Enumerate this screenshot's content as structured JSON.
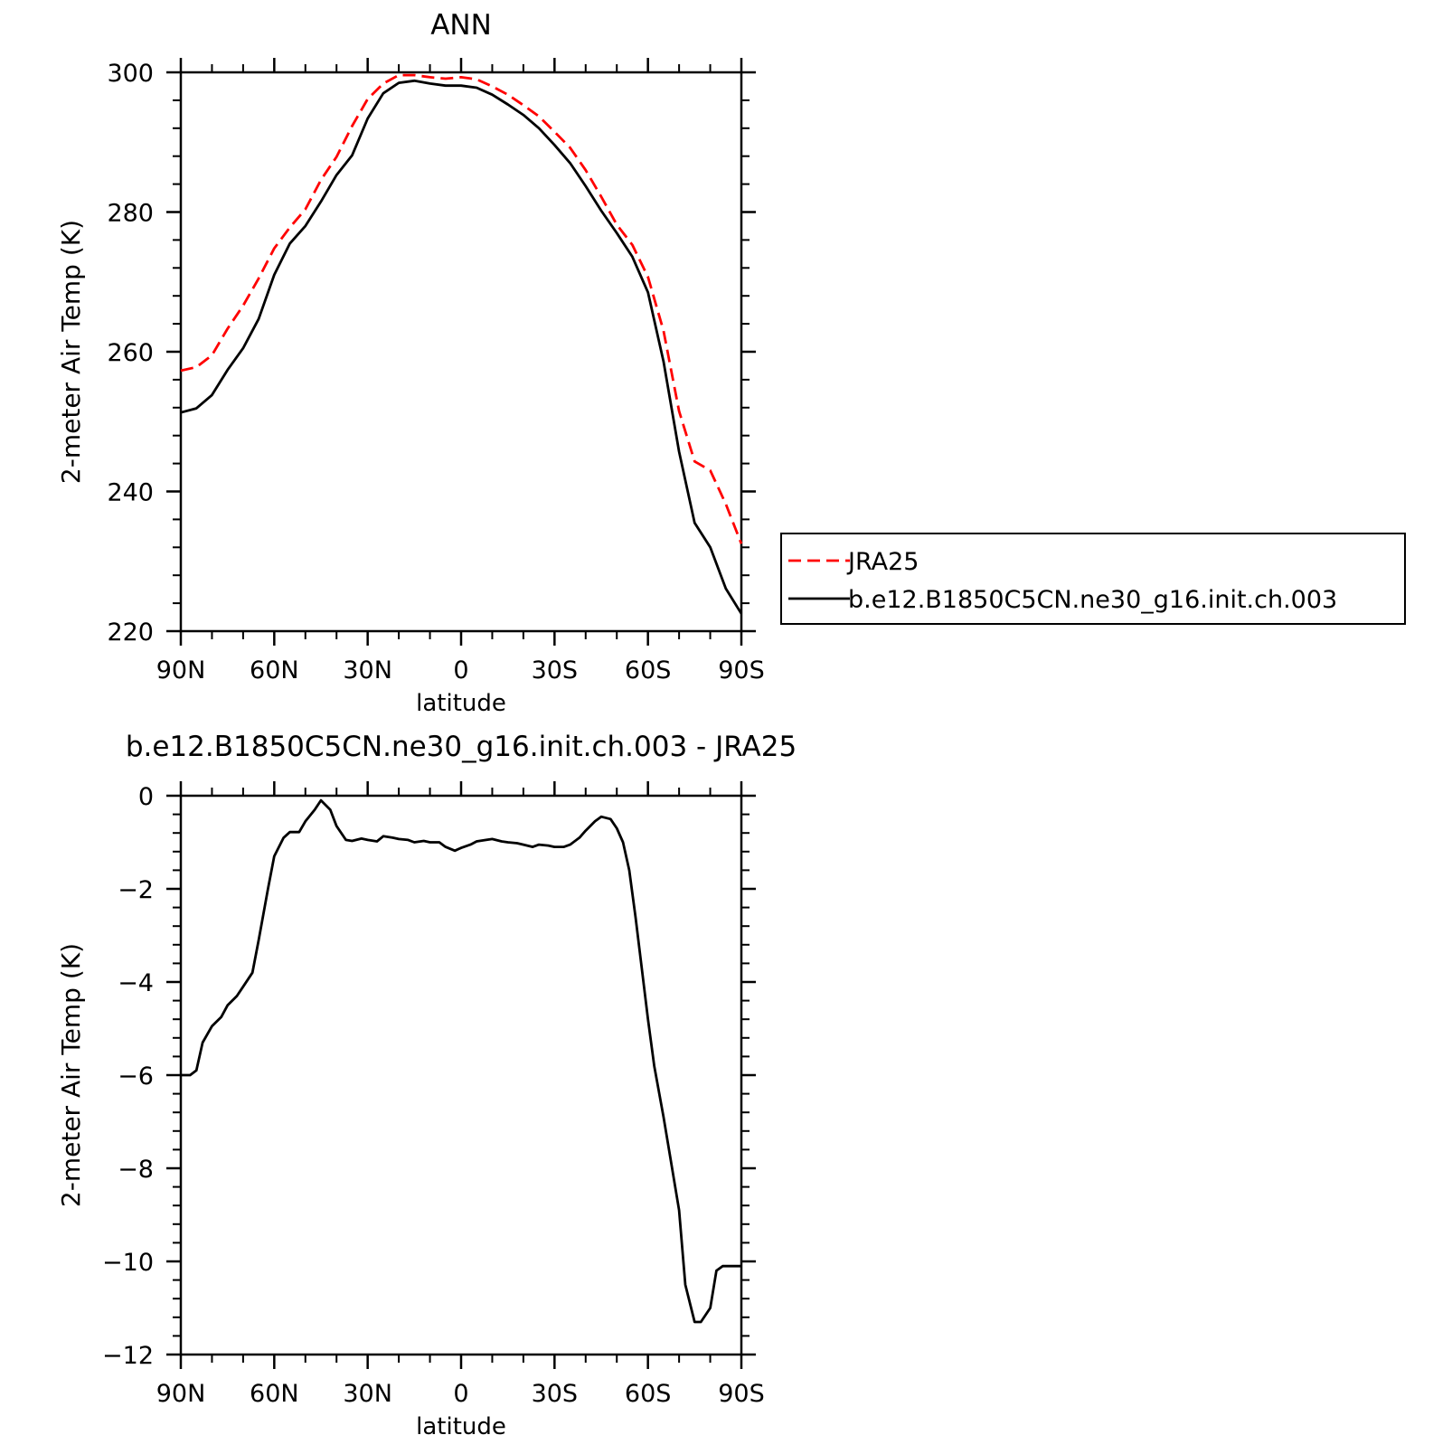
{
  "chart_data": [
    {
      "type": "line",
      "title": "ANN",
      "xlabel": "latitude",
      "ylabel": "2-meter Air Temp (K)",
      "xlim": [
        90,
        -90
      ],
      "ylim": [
        220,
        300
      ],
      "x_ticks": [
        {
          "value": 90,
          "label": "90N"
        },
        {
          "value": 60,
          "label": "60N"
        },
        {
          "value": 30,
          "label": "30N"
        },
        {
          "value": 0,
          "label": "0"
        },
        {
          "value": -30,
          "label": "30S"
        },
        {
          "value": -60,
          "label": "60S"
        },
        {
          "value": -90,
          "label": "90S"
        }
      ],
      "y_ticks": [
        {
          "value": 300,
          "label": "300"
        },
        {
          "value": 280,
          "label": "280"
        },
        {
          "value": 260,
          "label": "260"
        },
        {
          "value": 240,
          "label": "240"
        },
        {
          "value": 220,
          "label": "220"
        }
      ],
      "legend_position": "right",
      "x": [
        90,
        85,
        80,
        75,
        70,
        65,
        60,
        55,
        50,
        45,
        40,
        35,
        30,
        25,
        20,
        15,
        10,
        5,
        0,
        -5,
        -10,
        -15,
        -20,
        -25,
        -30,
        -35,
        -40,
        -45,
        -50,
        -55,
        -60,
        -65,
        -70,
        -75,
        -80,
        -85,
        -90
      ],
      "series": [
        {
          "name": "JRA25",
          "color": "#ff0000",
          "dash": "dashed",
          "values": [
            257.3,
            257.8,
            259.5,
            263.3,
            266.6,
            270.5,
            274.8,
            277.8,
            280.4,
            284.6,
            287.9,
            292.3,
            296.2,
            298.4,
            299.6,
            299.6,
            299.3,
            299.1,
            299.3,
            299.0,
            298.0,
            296.8,
            295.3,
            293.7,
            291.5,
            289.2,
            286.0,
            282.2,
            278.2,
            275.3,
            270.7,
            263.0,
            251.5,
            244.3,
            243.0,
            238.2,
            232.5
          ]
        },
        {
          "name": "b.e12.B1850C5CN.ne30_g16.init.ch.003",
          "color": "#000000",
          "dash": "solid",
          "values": [
            251.3,
            251.9,
            253.8,
            257.4,
            260.5,
            264.7,
            271.0,
            275.5,
            278.0,
            281.5,
            285.3,
            288.1,
            293.4,
            297.0,
            298.5,
            298.8,
            298.4,
            298.1,
            298.1,
            297.8,
            296.8,
            295.4,
            293.9,
            292.0,
            289.6,
            287.0,
            283.7,
            280.2,
            277.0,
            273.6,
            268.5,
            258.6,
            245.7,
            235.5,
            232.0,
            226.1,
            222.5
          ]
        }
      ]
    },
    {
      "type": "line",
      "title": "b.e12.B1850C5CN.ne30_g16.init.ch.003 - JRA25",
      "xlabel": "latitude",
      "ylabel": "2-meter Air Temp (K)",
      "xlim": [
        90,
        -90
      ],
      "ylim": [
        -12,
        0
      ],
      "x_ticks": [
        {
          "value": 90,
          "label": "90N"
        },
        {
          "value": 60,
          "label": "60N"
        },
        {
          "value": 30,
          "label": "30N"
        },
        {
          "value": 0,
          "label": "0"
        },
        {
          "value": -30,
          "label": "30S"
        },
        {
          "value": -60,
          "label": "60S"
        },
        {
          "value": -90,
          "label": "90S"
        }
      ],
      "y_ticks": [
        {
          "value": 0,
          "label": "0"
        },
        {
          "value": -2,
          "label": "−2"
        },
        {
          "value": -4,
          "label": "−4"
        },
        {
          "value": -6,
          "label": "−6"
        },
        {
          "value": -8,
          "label": "−8"
        },
        {
          "value": -10,
          "label": "−10"
        },
        {
          "value": -12,
          "label": "−12"
        }
      ],
      "x": [
        90,
        87,
        85,
        83,
        80,
        77,
        75,
        72,
        70,
        67,
        65,
        62,
        60,
        57,
        55,
        52,
        50,
        47,
        45,
        42,
        40,
        37,
        35,
        32,
        30,
        27,
        25,
        22,
        20,
        17,
        15,
        12,
        10,
        7,
        5,
        2,
        0,
        -3,
        -5,
        -8,
        -10,
        -13,
        -15,
        -18,
        -20,
        -23,
        -25,
        -28,
        -30,
        -33,
        -35,
        -38,
        -40,
        -43,
        -45,
        -48,
        -50,
        -52,
        -54,
        -56,
        -58,
        -60,
        -62,
        -65,
        -67,
        -70,
        -72,
        -75,
        -77,
        -80,
        -82,
        -84,
        -86,
        -88,
        -90
      ],
      "series": [
        {
          "name": "",
          "color": "#000000",
          "dash": "solid",
          "values": [
            -6.0,
            -6.0,
            -5.9,
            -5.3,
            -4.95,
            -4.75,
            -4.5,
            -4.3,
            -4.1,
            -3.8,
            -3.1,
            -2.0,
            -1.3,
            -0.9,
            -0.78,
            -0.78,
            -0.55,
            -0.3,
            -0.1,
            -0.3,
            -0.65,
            -0.95,
            -0.97,
            -0.92,
            -0.95,
            -0.98,
            -0.87,
            -0.9,
            -0.93,
            -0.95,
            -1.0,
            -0.97,
            -1.0,
            -1.0,
            -1.1,
            -1.18,
            -1.12,
            -1.05,
            -0.98,
            -0.95,
            -0.93,
            -0.98,
            -1.0,
            -1.02,
            -1.05,
            -1.1,
            -1.05,
            -1.07,
            -1.1,
            -1.1,
            -1.05,
            -0.9,
            -0.75,
            -0.55,
            -0.45,
            -0.5,
            -0.7,
            -1.0,
            -1.6,
            -2.6,
            -3.7,
            -4.8,
            -5.8,
            -6.9,
            -7.7,
            -8.9,
            -10.5,
            -11.3,
            -11.3,
            -11.0,
            -10.2,
            -10.1,
            -10.1,
            -10.1,
            -10.1
          ]
        }
      ]
    }
  ]
}
